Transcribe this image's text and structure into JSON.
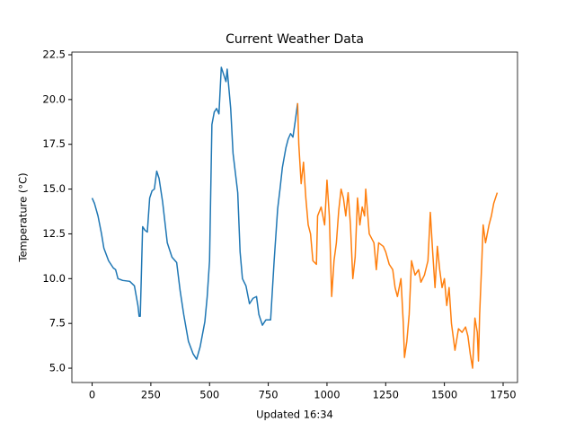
{
  "chart_data": {
    "type": "line",
    "title": "Current Weather Data",
    "xlabel": "Updated 16:34",
    "ylabel": "Temperature (°C)",
    "xlim": [
      -86.25,
      1811.25
    ],
    "xticks": [
      0,
      250,
      500,
      750,
      1000,
      1250,
      1500,
      1750
    ],
    "ylim": [
      4.2,
      22.65
    ],
    "yticks": [
      {
        "value": 5,
        "label": "5.0"
      },
      7.5,
      {
        "value": 10,
        "label": "10.0"
      },
      12.5,
      {
        "value": 15,
        "label": "15.0"
      },
      17.5,
      {
        "value": 20,
        "label": "20.0"
      },
      22.5
    ],
    "grid": false,
    "series": [
      {
        "color": "#1f77b4",
        "x": [
          0,
          10,
          25,
          40,
          50,
          70,
          90,
          100,
          110,
          130,
          160,
          180,
          195,
          200,
          205,
          215,
          225,
          235,
          245,
          255,
          265,
          275,
          285,
          300,
          320,
          340,
          360,
          375,
          390,
          410,
          430,
          445,
          460,
          480,
          490,
          500,
          510,
          520,
          530,
          540,
          550,
          560,
          570,
          575,
          590,
          600,
          620,
          630,
          640,
          655,
          670,
          685,
          700,
          710,
          725,
          740,
          760,
          775,
          790,
          800,
          810,
          825,
          835,
          845,
          855,
          865,
          875
        ],
        "values": [
          14.5,
          14.2,
          13.5,
          12.5,
          11.7,
          11.0,
          10.6,
          10.5,
          10.0,
          9.9,
          9.85,
          9.6,
          8.5,
          7.9,
          7.9,
          12.9,
          12.7,
          12.6,
          14.5,
          14.9,
          15.0,
          16.0,
          15.6,
          14.3,
          12.0,
          11.2,
          10.9,
          9.3,
          8.0,
          6.5,
          5.8,
          5.5,
          6.2,
          7.6,
          9.0,
          11.0,
          18.6,
          19.3,
          19.5,
          19.2,
          21.8,
          21.4,
          21.0,
          21.7,
          19.5,
          17.0,
          14.8,
          11.5,
          10.0,
          9.6,
          8.6,
          8.9,
          9.0,
          8.0,
          7.4,
          7.7,
          7.7,
          11.0,
          13.9,
          15.0,
          16.2,
          17.3,
          17.8,
          18.1,
          17.9,
          18.8,
          19.8
        ]
      },
      {
        "color": "#ff7f0e",
        "x": [
          875,
          880,
          890,
          900,
          910,
          920,
          930,
          940,
          955,
          960,
          975,
          990,
          1000,
          1010,
          1020,
          1030,
          1040,
          1050,
          1060,
          1070,
          1080,
          1090,
          1100,
          1110,
          1120,
          1130,
          1140,
          1150,
          1160,
          1165,
          1180,
          1200,
          1210,
          1220,
          1240,
          1250,
          1265,
          1280,
          1290,
          1300,
          1315,
          1325,
          1330,
          1340,
          1350,
          1360,
          1375,
          1390,
          1400,
          1415,
          1430,
          1440,
          1450,
          1460,
          1470,
          1480,
          1490,
          1500,
          1510,
          1520,
          1530,
          1545,
          1560,
          1575,
          1590,
          1600,
          1610,
          1620,
          1630,
          1640,
          1645,
          1650,
          1660,
          1665,
          1675,
          1690,
          1700,
          1710,
          1725
        ],
        "values": [
          19.8,
          17.5,
          15.3,
          16.5,
          14.5,
          13.0,
          12.5,
          11.0,
          10.8,
          13.5,
          14.0,
          13.0,
          15.5,
          13.5,
          9.0,
          11.0,
          12.0,
          13.8,
          15.0,
          14.5,
          13.5,
          14.8,
          13.0,
          10.0,
          11.2,
          14.5,
          13.0,
          14.0,
          13.5,
          15.0,
          12.5,
          12.0,
          10.5,
          12.0,
          11.8,
          11.5,
          10.8,
          10.5,
          9.5,
          9.0,
          10.0,
          7.5,
          5.6,
          6.5,
          8.0,
          11.0,
          10.2,
          10.5,
          9.8,
          10.2,
          11.0,
          13.7,
          11.5,
          9.5,
          11.8,
          10.5,
          9.5,
          10.0,
          8.5,
          9.5,
          7.5,
          6.0,
          7.2,
          7.0,
          7.3,
          6.8,
          5.8,
          5.0,
          7.8,
          7.0,
          5.4,
          8.0,
          11.2,
          13.0,
          12.0,
          13.0,
          13.5,
          14.2,
          14.8
        ]
      }
    ]
  }
}
